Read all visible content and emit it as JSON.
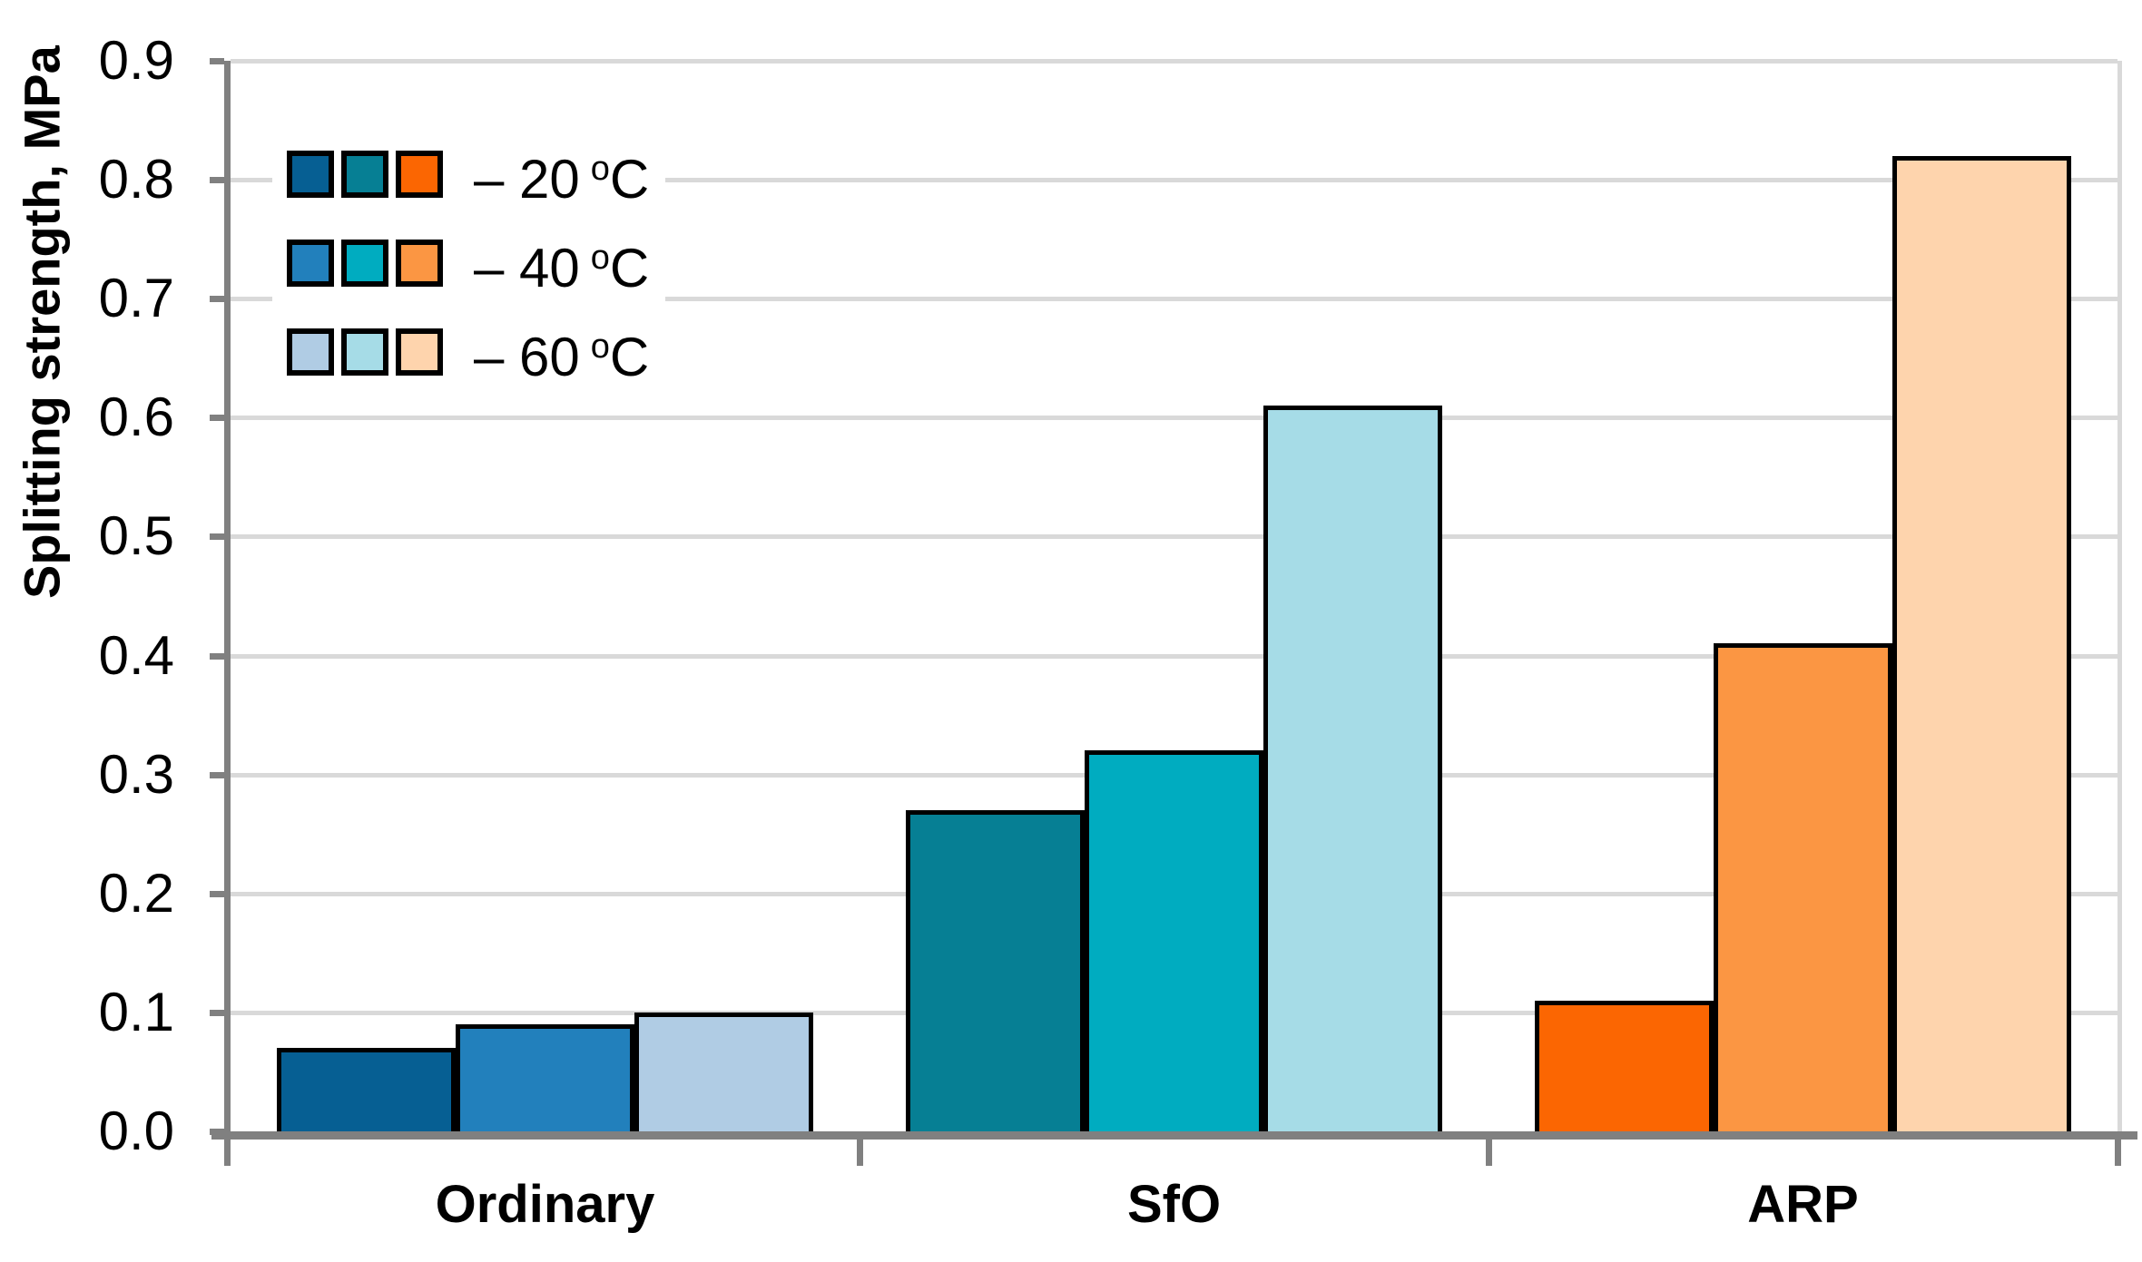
{
  "chart_data": {
    "type": "bar",
    "title": "",
    "ylabel": "Splitting strength, MPa",
    "xlabel": "",
    "ylim": [
      0,
      0.9
    ],
    "ytick_step": 0.1,
    "yticks": [
      "0.0",
      "0.1",
      "0.2",
      "0.3",
      "0.4",
      "0.5",
      "0.6",
      "0.7",
      "0.8",
      "0.9"
    ],
    "grid": true,
    "legend_position": "top-left",
    "categories": [
      "Ordinary",
      "SfO",
      "ARP"
    ],
    "series": [
      {
        "name": "20 °C",
        "legend": {
          "prefix": "– 20",
          "sup": "o",
          "unit": "C"
        },
        "values": [
          0.07,
          0.27,
          0.11
        ],
        "colors": [
          "#065F93",
          "#067F94",
          "#FB6602"
        ]
      },
      {
        "name": "40 °C",
        "legend": {
          "prefix": "– 40",
          "sup": "o",
          "unit": "C"
        },
        "values": [
          0.09,
          0.32,
          0.41
        ],
        "colors": [
          "#2280BC",
          "#00ACC0",
          "#FB9643"
        ]
      },
      {
        "name": "60 °C",
        "legend": {
          "prefix": "– 60",
          "sup": "o",
          "unit": "C"
        },
        "values": [
          0.1,
          0.61,
          0.82
        ],
        "colors": [
          "#B0CCE4",
          "#A6DCE7",
          "#FED4AD"
        ]
      }
    ]
  },
  "colors": {
    "background": "#FFFFFF",
    "gridline": "#D9D9D9",
    "axis_line": "#808080",
    "bar_border": "#000000",
    "text": "#000000"
  }
}
